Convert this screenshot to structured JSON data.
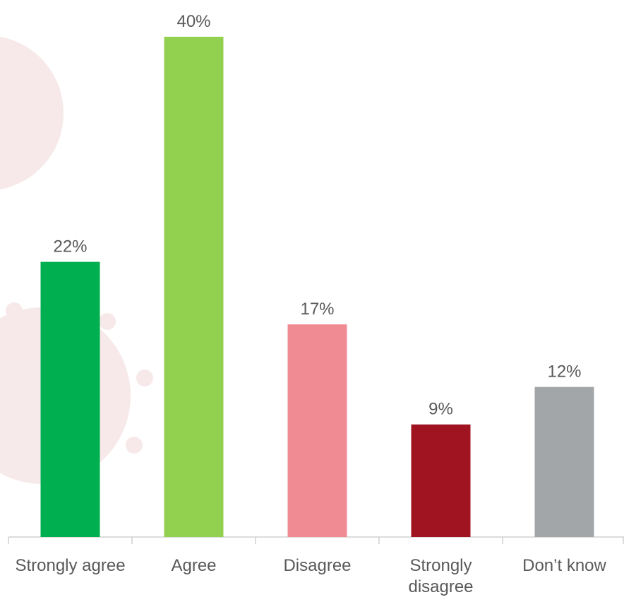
{
  "chart_data": {
    "type": "bar",
    "categories": [
      "Strongly agree",
      "Agree",
      "Disagree",
      "Strongly disagree",
      "Don’t know"
    ],
    "values": [
      22,
      40,
      17,
      9,
      12
    ],
    "value_labels": [
      "22%",
      "40%",
      "17%",
      "9%",
      "12%"
    ],
    "colors": [
      "#00b050",
      "#92d050",
      "#f08a93",
      "#a01422",
      "#a3a6a9"
    ]
  }
}
